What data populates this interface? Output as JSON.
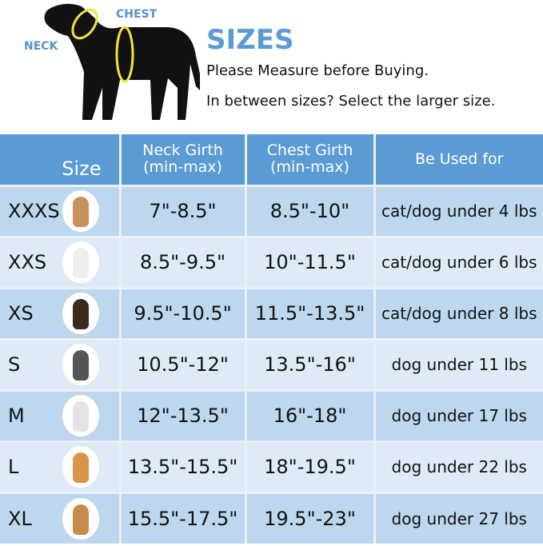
{
  "header": {
    "neck_label": "NECK",
    "chest_label": "CHEST",
    "title": "SIZES",
    "line1": "Please Measure before Buying.",
    "line2": "In between sizes? Select the larger size."
  },
  "colors": {
    "header_bg": "#5b9bd5",
    "row_dark": "#bdd7ee",
    "row_light": "#deebf7",
    "title": "#5b9bd5",
    "ring": "#f2e43a"
  },
  "table": {
    "columns": [
      "Size",
      "Neck Girth\n(min-max)",
      "Chest Girth\n(min-max)",
      "Be Used for"
    ],
    "col_neck_1": "Neck Girth",
    "col_neck_2": "(min-max)",
    "col_chest_1": "Chest Girth",
    "col_chest_2": "(min-max)",
    "rows": [
      {
        "size": "XXXS",
        "neck": "7\"-8.5\"",
        "chest": "8.5\"-10\"",
        "use": "cat/dog under 4 lbs",
        "dog_color": "#c8925a"
      },
      {
        "size": "XXS",
        "neck": "8.5\"-9.5\"",
        "chest": "10\"-11.5\"",
        "use": "cat/dog under 6 lbs",
        "dog_color": "#eeeeee"
      },
      {
        "size": "XS",
        "neck": "9.5\"-10.5\"",
        "chest": "11.5\"-13.5\"",
        "use": "cat/dog under 8 lbs",
        "dog_color": "#3a2a20"
      },
      {
        "size": "S",
        "neck": "10.5\"-12\"",
        "chest": "13.5\"-16\"",
        "use": "dog under 11 lbs",
        "dog_color": "#555555"
      },
      {
        "size": "M",
        "neck": "12\"-13.5\"",
        "chest": "16\"-18\"",
        "use": "dog under 17 lbs",
        "dog_color": "#e4e4e4"
      },
      {
        "size": "L",
        "neck": "13.5\"-15.5\"",
        "chest": "18\"-19.5\"",
        "use": "dog under 22 lbs",
        "dog_color": "#d8954a"
      },
      {
        "size": "XL",
        "neck": "15.5\"-17.5\"",
        "chest": "19.5\"-23\"",
        "use": "dog under 27 lbs",
        "dog_color": "#c98b4a"
      }
    ]
  }
}
